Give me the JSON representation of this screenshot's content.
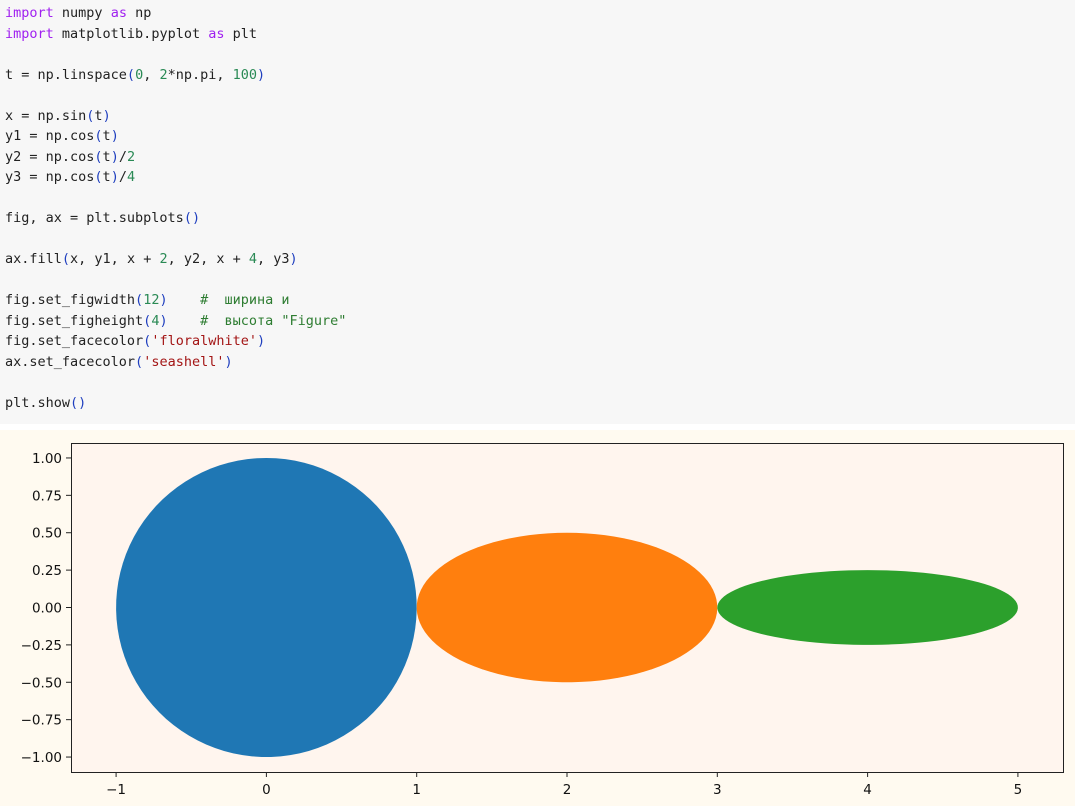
{
  "code_cell": {
    "lines": [
      [
        {
          "t": "import",
          "c": "#a020f0"
        },
        {
          "t": " numpy "
        },
        {
          "t": "as",
          "c": "#a020f0"
        },
        {
          "t": " np"
        }
      ],
      [
        {
          "t": "import",
          "c": "#a020f0"
        },
        {
          "t": " matplotlib.pyplot "
        },
        {
          "t": "as",
          "c": "#a020f0"
        },
        {
          "t": " plt"
        }
      ],
      [],
      [
        {
          "t": "t = np.linspace"
        },
        {
          "t": "(",
          "c": "#1f3fbf"
        },
        {
          "t": "0",
          "c": "#2a8a55"
        },
        {
          "t": ", "
        },
        {
          "t": "2",
          "c": "#2a8a55"
        },
        {
          "t": "*np.pi, "
        },
        {
          "t": "100",
          "c": "#2a8a55"
        },
        {
          "t": ")",
          "c": "#1f3fbf"
        }
      ],
      [],
      [
        {
          "t": "x = np.sin"
        },
        {
          "t": "(",
          "c": "#1f3fbf"
        },
        {
          "t": "t"
        },
        {
          "t": ")",
          "c": "#1f3fbf"
        }
      ],
      [
        {
          "t": "y1 = np.cos"
        },
        {
          "t": "(",
          "c": "#1f3fbf"
        },
        {
          "t": "t"
        },
        {
          "t": ")",
          "c": "#1f3fbf"
        }
      ],
      [
        {
          "t": "y2 = np.cos"
        },
        {
          "t": "(",
          "c": "#1f3fbf"
        },
        {
          "t": "t"
        },
        {
          "t": ")",
          "c": "#1f3fbf"
        },
        {
          "t": "/"
        },
        {
          "t": "2",
          "c": "#2a8a55"
        }
      ],
      [
        {
          "t": "y3 = np.cos"
        },
        {
          "t": "(",
          "c": "#1f3fbf"
        },
        {
          "t": "t"
        },
        {
          "t": ")",
          "c": "#1f3fbf"
        },
        {
          "t": "/"
        },
        {
          "t": "4",
          "c": "#2a8a55"
        }
      ],
      [],
      [
        {
          "t": "fig, ax = plt.subplots"
        },
        {
          "t": "()",
          "c": "#1f3fbf"
        }
      ],
      [],
      [
        {
          "t": "ax.fill"
        },
        {
          "t": "(",
          "c": "#1f3fbf"
        },
        {
          "t": "x, y1, x + "
        },
        {
          "t": "2",
          "c": "#2a8a55"
        },
        {
          "t": ", y2, x + "
        },
        {
          "t": "4",
          "c": "#2a8a55"
        },
        {
          "t": ", y3"
        },
        {
          "t": ")",
          "c": "#1f3fbf"
        }
      ],
      [],
      [
        {
          "t": "fig.set_figwidth"
        },
        {
          "t": "(",
          "c": "#1f3fbf"
        },
        {
          "t": "12",
          "c": "#2a8a55"
        },
        {
          "t": ")",
          "c": "#1f3fbf"
        },
        {
          "t": "    "
        },
        {
          "t": "#  ширина и",
          "c": "#2e7d32"
        }
      ],
      [
        {
          "t": "fig.set_figheight"
        },
        {
          "t": "(",
          "c": "#1f3fbf"
        },
        {
          "t": "4",
          "c": "#2a8a55"
        },
        {
          "t": ")",
          "c": "#1f3fbf"
        },
        {
          "t": "    "
        },
        {
          "t": "#  высота \"Figure\"",
          "c": "#2e7d32"
        }
      ],
      [
        {
          "t": "fig.set_facecolor"
        },
        {
          "t": "(",
          "c": "#1f3fbf"
        },
        {
          "t": "'floralwhite'",
          "c": "#a31515"
        },
        {
          "t": ")",
          "c": "#1f3fbf"
        }
      ],
      [
        {
          "t": "ax.set_facecolor"
        },
        {
          "t": "(",
          "c": "#1f3fbf"
        },
        {
          "t": "'seashell'",
          "c": "#a31515"
        },
        {
          "t": ")",
          "c": "#1f3fbf"
        }
      ],
      [],
      [
        {
          "t": "plt.show"
        },
        {
          "t": "()",
          "c": "#1f3fbf"
        }
      ]
    ]
  },
  "chart_data": {
    "type": "area",
    "figure_facecolor": "#fffaf0",
    "axes_facecolor": "#fff5ee",
    "xlim": [
      -1.3,
      5.3
    ],
    "ylim": [
      -1.1,
      1.1
    ],
    "xticks": [
      -1,
      0,
      1,
      2,
      3,
      4,
      5
    ],
    "xtick_labels": [
      "−1",
      "0",
      "1",
      "2",
      "3",
      "4",
      "5"
    ],
    "yticks": [
      1.0,
      0.75,
      0.5,
      0.25,
      0.0,
      -0.25,
      -0.5,
      -0.75,
      -1.0
    ],
    "ytick_labels": [
      "1.00",
      "0.75",
      "0.50",
      "0.25",
      "0.00",
      "−0.25",
      "−0.50",
      "−0.75",
      "−1.00"
    ],
    "grid": false,
    "series": [
      {
        "center_x": 0,
        "radius_x": 1,
        "radius_y": 1,
        "color": "#1f77b4"
      },
      {
        "center_x": 2,
        "radius_x": 1,
        "radius_y": 0.5,
        "color": "#ff7f0e"
      },
      {
        "center_x": 4,
        "radius_x": 1,
        "radius_y": 0.25,
        "color": "#2ca02c"
      }
    ]
  }
}
